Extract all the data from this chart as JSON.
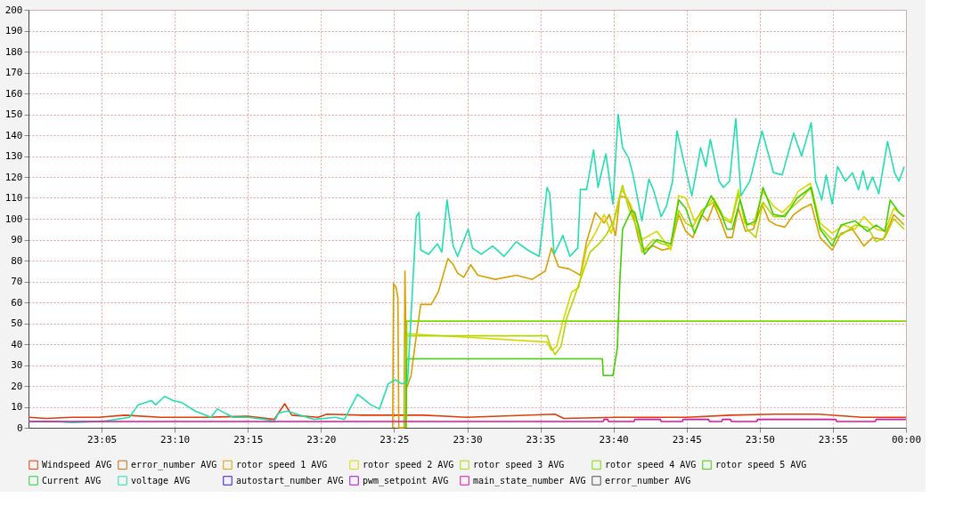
{
  "chart_data": {
    "type": "line",
    "xlim": [
      23.0,
      24.0
    ],
    "ylim": [
      0,
      200
    ],
    "xticks": [
      {
        "value": 23.08333,
        "label": "23:05"
      },
      {
        "value": 23.16667,
        "label": "23:10"
      },
      {
        "value": 23.25,
        "label": "23:15"
      },
      {
        "value": 23.33333,
        "label": "23:20"
      },
      {
        "value": 23.41667,
        "label": "23:25"
      },
      {
        "value": 23.5,
        "label": "23:30"
      },
      {
        "value": 23.58333,
        "label": "23:35"
      },
      {
        "value": 23.66667,
        "label": "23:40"
      },
      {
        "value": 23.75,
        "label": "23:45"
      },
      {
        "value": 23.83333,
        "label": "23:50"
      },
      {
        "value": 23.91667,
        "label": "23:55"
      },
      {
        "value": 24.0,
        "label": "00:00"
      }
    ],
    "yticks": [
      0,
      10,
      20,
      30,
      40,
      50,
      60,
      70,
      80,
      90,
      100,
      110,
      120,
      130,
      140,
      150,
      160,
      170,
      180,
      190,
      200
    ],
    "grid": true,
    "legend": "bottom",
    "marker": "none",
    "line_style": "solid",
    "series": [
      {
        "name": "Windspeed AVG",
        "color": "#e03c0a",
        "x": [
          23.0,
          23.02,
          23.05,
          23.08,
          23.11,
          23.15,
          23.2,
          23.25,
          23.28,
          23.292,
          23.3,
          23.33,
          23.34,
          23.38,
          23.42,
          23.45,
          23.5,
          23.6,
          23.61,
          23.67,
          23.75,
          23.8,
          23.85,
          23.9,
          23.95,
          24.0
        ],
        "values": [
          5,
          4.5,
          5,
          5,
          6,
          5,
          5,
          5.5,
          4,
          11.5,
          6,
          5,
          6.5,
          6,
          6,
          6,
          5,
          6.5,
          4.5,
          5,
          5,
          6,
          6.5,
          6.5,
          5,
          5
        ]
      },
      {
        "name": "error_number AVG",
        "color": "#d06a10"
      },
      {
        "name": "rotor speed 1 AVG",
        "color": "#d8a000",
        "x": [
          23.415,
          23.416,
          23.419,
          23.421,
          23.422,
          23.428,
          23.429,
          23.431,
          23.436,
          23.441,
          23.447,
          23.459,
          23.467,
          23.478,
          23.484,
          23.489,
          23.496,
          23.504,
          23.512,
          23.532,
          23.556,
          23.574,
          23.589,
          23.596,
          23.604,
          23.616,
          23.629,
          23.636,
          23.646,
          23.656,
          23.662,
          23.669,
          23.674,
          23.682,
          23.689,
          23.696,
          23.702,
          23.712,
          23.722,
          23.732,
          23.741,
          23.749,
          23.757,
          23.767,
          23.774,
          23.781,
          23.789,
          23.796,
          23.802,
          23.809,
          23.817,
          23.826,
          23.836,
          23.844,
          23.852,
          23.862,
          23.872,
          23.882,
          23.892,
          23.902,
          23.916,
          23.926,
          23.939,
          23.952,
          23.962,
          23.974,
          23.986,
          23.998
        ],
        "values": [
          0,
          69,
          67,
          62,
          0,
          0,
          75,
          19,
          25,
          41,
          59,
          59,
          65,
          81,
          78,
          74,
          72,
          78,
          73,
          71,
          73,
          71,
          75,
          86,
          77,
          76,
          73,
          89,
          103,
          98,
          102,
          92,
          111,
          110,
          102,
          89,
          85,
          87,
          85,
          86,
          102,
          94,
          91,
          102,
          99,
          107,
          99,
          91,
          91,
          105,
          94,
          95,
          107,
          99,
          97,
          96,
          102,
          105,
          107,
          91,
          85,
          93,
          95,
          87,
          91,
          90,
          102,
          97
        ]
      },
      {
        "name": "rotor speed 2 AVG",
        "color": "#d8d800",
        "x": [
          23.43,
          23.431,
          23.591,
          23.596,
          23.602,
          23.609,
          23.619,
          23.627,
          23.636,
          23.647,
          23.656,
          23.664,
          23.671,
          23.676,
          23.686,
          23.696,
          23.699,
          23.716,
          23.732,
          23.741,
          23.749,
          23.759,
          23.771,
          23.781,
          23.792,
          23.801,
          23.809,
          23.816,
          23.826,
          23.837,
          23.849,
          23.859,
          23.869,
          23.877,
          23.891,
          23.902,
          23.916,
          23.929,
          23.942,
          23.952,
          23.966,
          23.976,
          23.986,
          23.998
        ],
        "values": [
          0,
          45,
          41,
          37,
          39,
          51,
          65,
          67,
          86,
          94,
          102,
          93,
          105,
          114,
          107,
          95,
          90,
          94,
          85,
          111,
          110,
          99,
          105,
          110,
          101,
          99,
          114,
          98,
          97,
          113,
          106,
          103,
          107,
          113,
          117,
          98,
          93,
          97,
          95,
          101,
          95,
          94,
          105,
          101
        ]
      },
      {
        "name": "rotor speed 3 AVG",
        "color": "#b0d800",
        "x": [
          23.43,
          23.431,
          23.591,
          23.594,
          23.6,
          23.607,
          23.613,
          23.62,
          23.63,
          23.64,
          23.65,
          23.658,
          23.667,
          23.672,
          23.677,
          23.684,
          23.695,
          23.699,
          23.712,
          23.722,
          23.732,
          23.741,
          23.749,
          23.757,
          23.767,
          23.781,
          23.792,
          23.801,
          23.809,
          23.819,
          23.829,
          23.837,
          23.849,
          23.859,
          23.869,
          23.882,
          23.891,
          23.902,
          23.916,
          23.929,
          23.942,
          23.956,
          23.966,
          23.976,
          23.986,
          23.998
        ],
        "values": [
          0,
          44,
          44,
          40,
          35,
          39,
          52,
          60,
          72,
          84,
          88,
          92,
          99,
          108,
          116,
          105,
          94,
          84,
          90,
          88,
          87,
          104,
          98,
          96,
          104,
          108,
          100,
          98,
          112,
          95,
          91,
          108,
          101,
          101,
          105,
          110,
          115,
          96,
          90,
          93,
          97,
          96,
          89,
          91,
          100,
          95
        ]
      },
      {
        "name": "rotor speed 4 AVG",
        "color": "#80d800",
        "x": [
          23.43,
          23.431,
          24.0
        ],
        "values": [
          0,
          51,
          51
        ]
      },
      {
        "name": "rotor speed 5 AVG",
        "color": "#40d000",
        "x": [
          23.43,
          23.431,
          23.654,
          23.655,
          23.666,
          23.671,
          23.674,
          23.677,
          23.687,
          23.691,
          23.696,
          23.702,
          23.716,
          23.732,
          23.741,
          23.749,
          23.759,
          23.769,
          23.778,
          23.789,
          23.796,
          23.802,
          23.811,
          23.819,
          23.829,
          23.837,
          23.849,
          23.862,
          23.876,
          23.892,
          23.902,
          23.916,
          23.926,
          23.942,
          23.956,
          23.966,
          23.976,
          23.982,
          23.992,
          23.998
        ],
        "values": [
          0,
          33,
          33,
          25,
          25,
          38,
          71,
          95,
          104,
          103,
          95,
          83,
          90,
          88,
          109,
          105,
          93,
          103,
          111,
          103,
          95,
          95,
          109,
          97,
          99,
          115,
          102,
          101,
          110,
          115,
          95,
          87,
          97,
          99,
          94,
          97,
          94,
          109,
          103,
          101
        ]
      },
      {
        "name": "Current AVG",
        "color": "#20d040"
      },
      {
        "name": "voltage AVG",
        "color": "#20e0b0",
        "x": [
          23.0,
          23.03,
          23.05,
          23.083,
          23.1,
          23.115,
          23.125,
          23.14,
          23.145,
          23.155,
          23.165,
          23.175,
          23.19,
          23.208,
          23.215,
          23.233,
          23.25,
          23.27,
          23.28,
          23.285,
          23.295,
          23.31,
          23.325,
          23.35,
          23.36,
          23.375,
          23.39,
          23.4,
          23.41,
          23.418,
          23.425,
          23.432,
          23.442,
          23.445,
          23.447,
          23.456,
          23.466,
          23.471,
          23.477,
          23.484,
          23.489,
          23.501,
          23.506,
          23.516,
          23.529,
          23.542,
          23.556,
          23.569,
          23.582,
          23.591,
          23.594,
          23.599,
          23.609,
          23.617,
          23.626,
          23.629,
          23.636,
          23.644,
          23.649,
          23.658,
          23.666,
          23.672,
          23.677,
          23.684,
          23.689,
          23.699,
          23.707,
          23.712,
          23.721,
          23.727,
          23.734,
          23.739,
          23.746,
          23.756,
          23.766,
          23.772,
          23.777,
          23.787,
          23.792,
          23.799,
          23.806,
          23.812,
          23.822,
          23.836,
          23.849,
          23.859,
          23.872,
          23.881,
          23.892,
          23.897,
          23.904,
          23.909,
          23.916,
          23.922,
          23.931,
          23.939,
          23.946,
          23.951,
          23.956,
          23.962,
          23.969,
          23.979,
          23.987,
          23.992,
          23.998
        ],
        "values": [
          3,
          3,
          2.5,
          3,
          4,
          5,
          11,
          13,
          11,
          15,
          13,
          12,
          8,
          5,
          9,
          5,
          5,
          4,
          3,
          7,
          8,
          6,
          4,
          5,
          4,
          16,
          11,
          9,
          21,
          23,
          21,
          22,
          101,
          103,
          85,
          83,
          88,
          84,
          109,
          87,
          82,
          95,
          86,
          83,
          87,
          82,
          89,
          85,
          82,
          115,
          112,
          83,
          92,
          82,
          86,
          114,
          114,
          133,
          115,
          131,
          107,
          150,
          134,
          129,
          121,
          99,
          119,
          114,
          101,
          106,
          118,
          142,
          129,
          111,
          134,
          125,
          138,
          118,
          115,
          118,
          148,
          111,
          118,
          142,
          122,
          121,
          141,
          130,
          146,
          118,
          109,
          121,
          107,
          125,
          118,
          122,
          114,
          123,
          114,
          120,
          112,
          137,
          122,
          118,
          125
        ]
      },
      {
        "name": "autostart_number AVG",
        "color": "#4010e0"
      },
      {
        "name": "pwm_setpoint AVG",
        "color": "#a010e0"
      },
      {
        "name": "main_state_number AVG",
        "color": "#e010a0",
        "x": [
          23.0,
          23.655,
          23.656,
          23.66,
          23.661,
          23.69,
          23.691,
          23.72,
          23.721,
          23.745,
          23.746,
          23.775,
          23.776,
          23.79,
          23.791,
          23.8,
          23.801,
          23.83,
          23.831,
          23.875,
          23.876,
          23.92,
          23.921,
          23.93,
          23.931,
          23.965,
          23.966,
          24.0
        ],
        "values": [
          3,
          3,
          4,
          4,
          3,
          3,
          4,
          4,
          3,
          3,
          4,
          4,
          3,
          3,
          4,
          4,
          3,
          3,
          4,
          4,
          4,
          4,
          3,
          3,
          3,
          3,
          4,
          4
        ]
      },
      {
        "name": "error_number AVG",
        "color": "#505050"
      }
    ]
  }
}
